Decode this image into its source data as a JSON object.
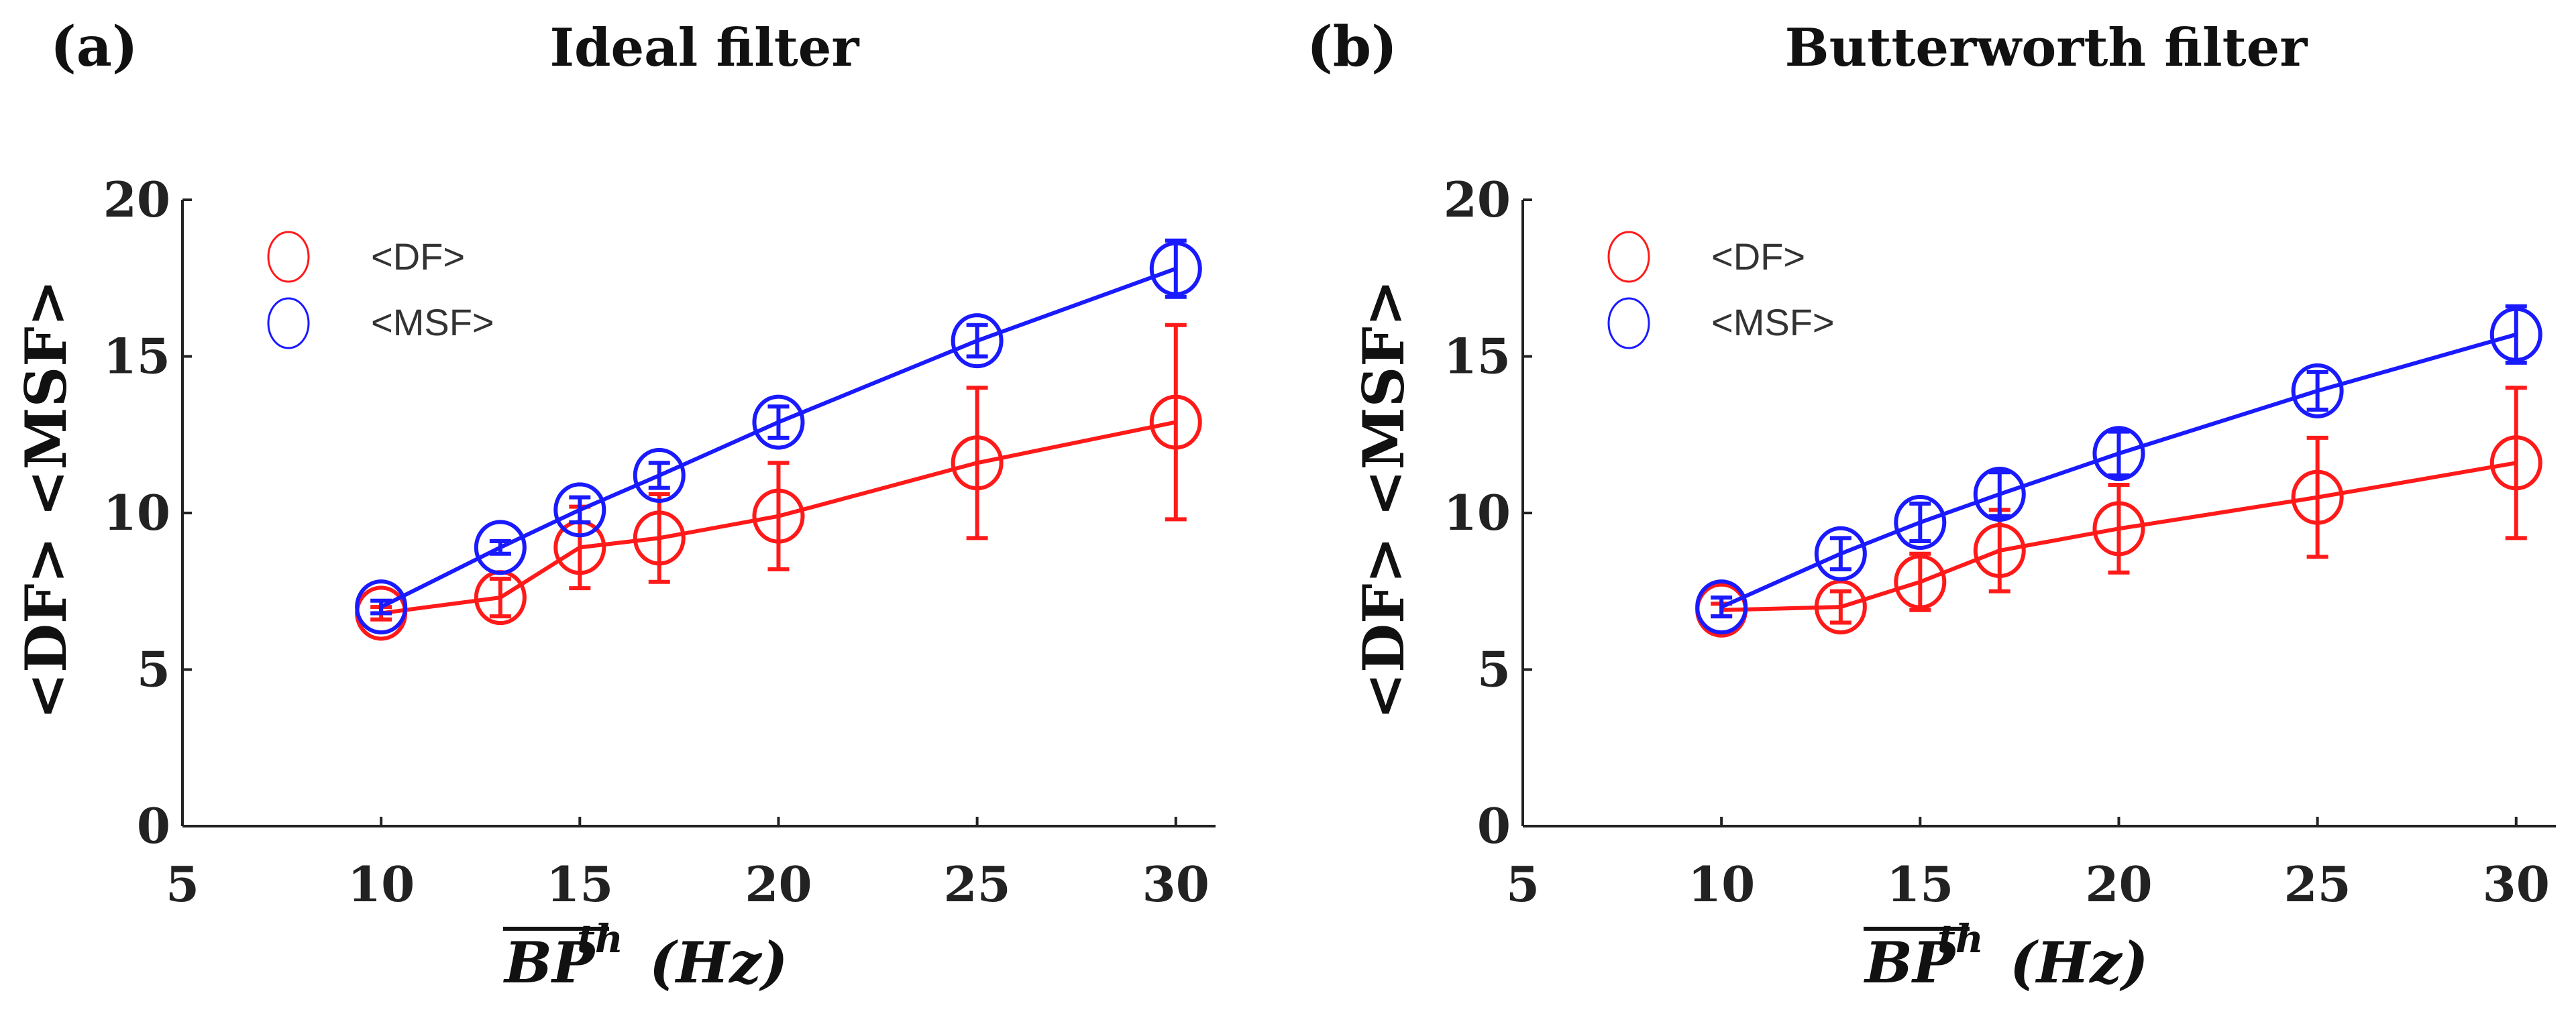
{
  "chart_data": [
    {
      "type": "line",
      "panel_label": "(a)",
      "title": "Ideal filter",
      "xlabel": "BP",
      "xlabel_superscript": "th",
      "xlabel_unit": "(Hz)",
      "ylabel": "<DF> <MSF>",
      "xlim": [
        5,
        31
      ],
      "ylim": [
        0,
        20
      ],
      "xticks": [
        "5",
        "10",
        "15",
        "20",
        "25",
        "30"
      ],
      "yticks": [
        "0",
        "5",
        "10",
        "15",
        "20"
      ],
      "legend_position": "top-left",
      "series": [
        {
          "name": "<DF>",
          "color": "#ff1a1a",
          "x": [
            10,
            13,
            15,
            17,
            20,
            25,
            30
          ],
          "y": [
            6.8,
            7.3,
            8.9,
            9.2,
            9.9,
            11.6,
            12.9
          ],
          "err": [
            0.2,
            0.6,
            1.3,
            1.4,
            1.7,
            2.4,
            3.1
          ]
        },
        {
          "name": "<MSF>",
          "color": "#1a1aff",
          "x": [
            10,
            13,
            15,
            17,
            20,
            25,
            30
          ],
          "y": [
            7.0,
            8.9,
            10.1,
            11.2,
            12.9,
            15.5,
            17.8
          ],
          "err": [
            0.2,
            0.2,
            0.4,
            0.4,
            0.5,
            0.5,
            0.9
          ]
        }
      ]
    },
    {
      "type": "line",
      "panel_label": "(b)",
      "title": "Butterworth filter",
      "xlabel": "BP",
      "xlabel_superscript": "th",
      "xlabel_unit": "(Hz)",
      "ylabel": "<DF> <MSF>",
      "xlim": [
        5,
        31
      ],
      "ylim": [
        0,
        20
      ],
      "xticks": [
        "5",
        "10",
        "15",
        "20",
        "25",
        "30"
      ],
      "yticks": [
        "0",
        "5",
        "10",
        "15",
        "20"
      ],
      "legend_position": "top-left",
      "series": [
        {
          "name": "<DF>",
          "color": "#ff1a1a",
          "x": [
            10,
            13,
            15,
            17,
            20,
            25,
            30
          ],
          "y": [
            6.9,
            7.0,
            7.8,
            8.8,
            9.5,
            10.5,
            11.6
          ],
          "err": [
            0.2,
            0.5,
            0.9,
            1.3,
            1.4,
            1.9,
            2.4
          ]
        },
        {
          "name": "<MSF>",
          "color": "#1a1aff",
          "x": [
            10,
            13,
            15,
            17,
            20,
            25,
            30
          ],
          "y": [
            7.0,
            8.7,
            9.7,
            10.6,
            11.9,
            13.9,
            15.7
          ],
          "err": [
            0.3,
            0.5,
            0.6,
            0.7,
            0.7,
            0.6,
            0.9
          ]
        }
      ]
    }
  ]
}
